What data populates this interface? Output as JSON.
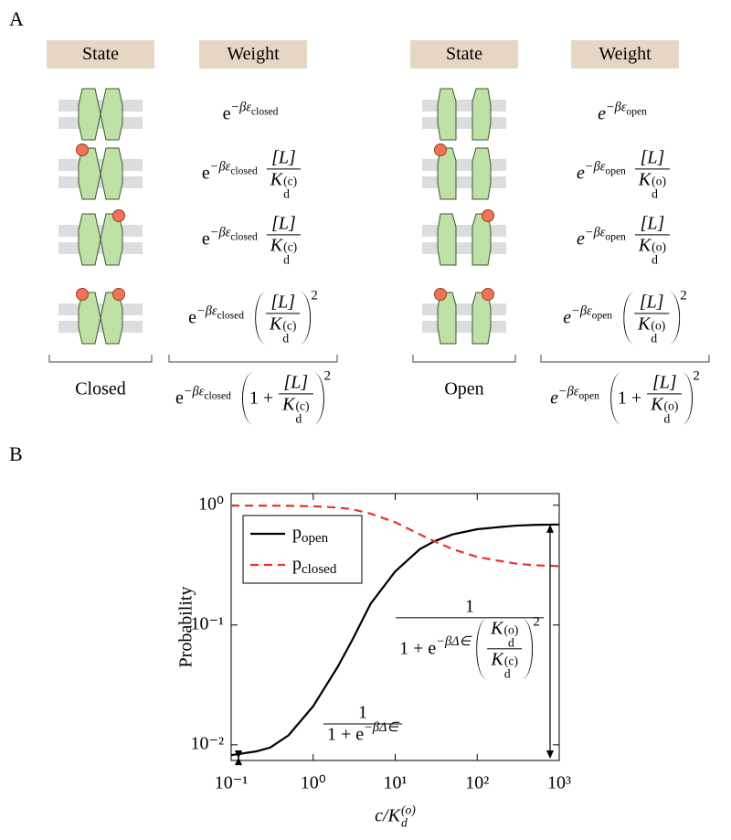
{
  "panel_a": {
    "label": "A",
    "headers": [
      "State",
      "Weight",
      "State",
      "Weight"
    ],
    "groups": [
      {
        "name": "Closed",
        "e": "e",
        "italic_e": false,
        "exponent": "−βε",
        "exponent_sub": "closed",
        "ligand": "[L]",
        "Kd": {
          "base": "K",
          "sub": "d",
          "sup": "(c)"
        },
        "power": "2",
        "one_plus": "1 +"
      },
      {
        "name": "Open",
        "e": "e",
        "italic_e": true,
        "exponent": "−βε",
        "exponent_sub": "open",
        "ligand": "[L]",
        "Kd": {
          "base": "K",
          "sub": "d",
          "sup": "(o)"
        },
        "power": "2",
        "one_plus": "1 +"
      }
    ]
  },
  "panel_b": {
    "label": "B"
  },
  "chart_data": {
    "type": "line",
    "y_label": "Probability",
    "x_label": {
      "base": "c/K",
      "sub": "d",
      "sup": "(o)"
    },
    "x": [
      0.1,
      0.2,
      0.3,
      0.5,
      1,
      2,
      3,
      5,
      10,
      20,
      30,
      50,
      100,
      200,
      300,
      500,
      1000
    ],
    "series": [
      {
        "name": "popen",
        "color": "#000000",
        "dash": "solid",
        "values": [
          0.0082,
          0.0088,
          0.0095,
          0.012,
          0.021,
          0.045,
          0.075,
          0.15,
          0.28,
          0.43,
          0.5,
          0.57,
          0.63,
          0.66,
          0.675,
          0.685,
          0.69
        ]
      },
      {
        "name": "pclosed",
        "color": "#e8302a",
        "dash": "dashed",
        "values": [
          0.992,
          0.991,
          0.99,
          0.988,
          0.979,
          0.955,
          0.925,
          0.85,
          0.72,
          0.57,
          0.5,
          0.43,
          0.37,
          0.34,
          0.325,
          0.315,
          0.31
        ]
      }
    ],
    "xlim": [
      0.1,
      1000
    ],
    "ylim": [
      0.0074,
      1.25
    ],
    "log_x": true,
    "log_y": true,
    "xticks": [
      {
        "value": 0.1,
        "label": "10⁻¹"
      },
      {
        "value": 1,
        "label": "10⁰"
      },
      {
        "value": 10,
        "label": "10¹"
      },
      {
        "value": 100,
        "label": "10²"
      },
      {
        "value": 1000,
        "label": "10³"
      }
    ],
    "yticks": [
      {
        "value": 0.01,
        "label": "10⁻²"
      },
      {
        "value": 0.1,
        "label": "10⁻¹"
      },
      {
        "value": 1,
        "label": "10⁰"
      }
    ],
    "legend": "upper left",
    "annotations": {
      "low": {
        "numerator": "1",
        "denominator": "1 + e",
        "denominator_exp": "−βΔ∈"
      },
      "high": {
        "numerator": "1",
        "denominator": "1 + e",
        "denominator_exp": "−βΔ∈",
        "ratio_num": {
          "base": "K",
          "sub": "d",
          "sup": "(o)"
        },
        "ratio_den": {
          "base": "K",
          "sub": "d",
          "sup": "(c)"
        },
        "power": "2"
      }
    }
  }
}
